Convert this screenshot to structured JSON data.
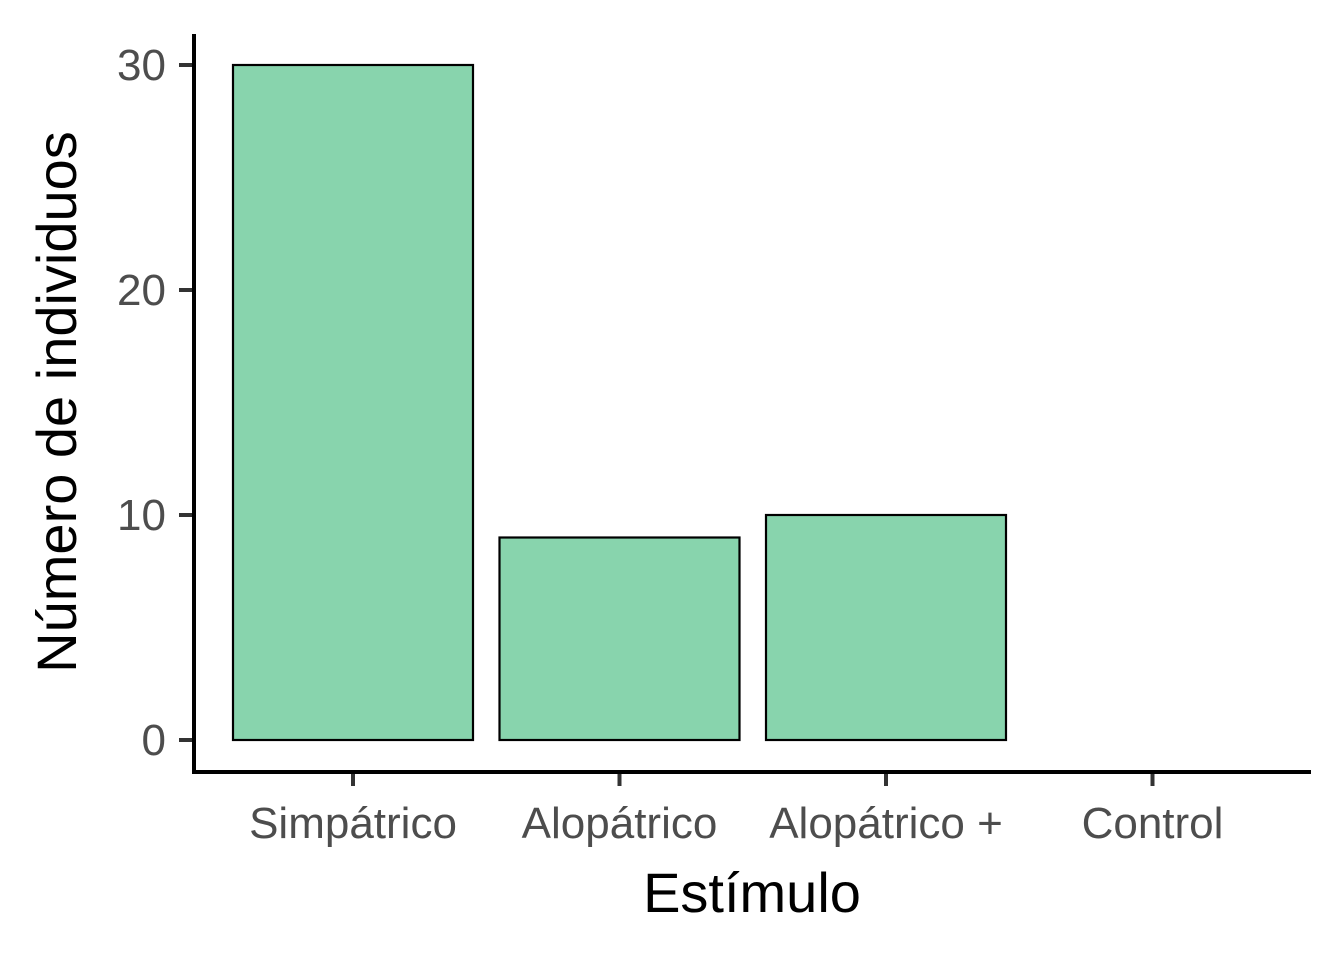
{
  "chart_data": {
    "type": "bar",
    "categories": [
      "Simpátrico",
      "Alopátrico",
      "Alopátrico +",
      "Control"
    ],
    "values": [
      30,
      9,
      10,
      0
    ],
    "title": "",
    "xlabel": "Estímulo",
    "ylabel": "Número de individuos",
    "ylim": [
      0,
      30
    ],
    "yticks": [
      0,
      10,
      20,
      30
    ],
    "grid": false,
    "legend": "none",
    "colors": {
      "bar_fill": "#88d4ad",
      "bar_stroke": "#000000",
      "axis": "#000000",
      "tick_text": "#4d4d4d"
    }
  }
}
